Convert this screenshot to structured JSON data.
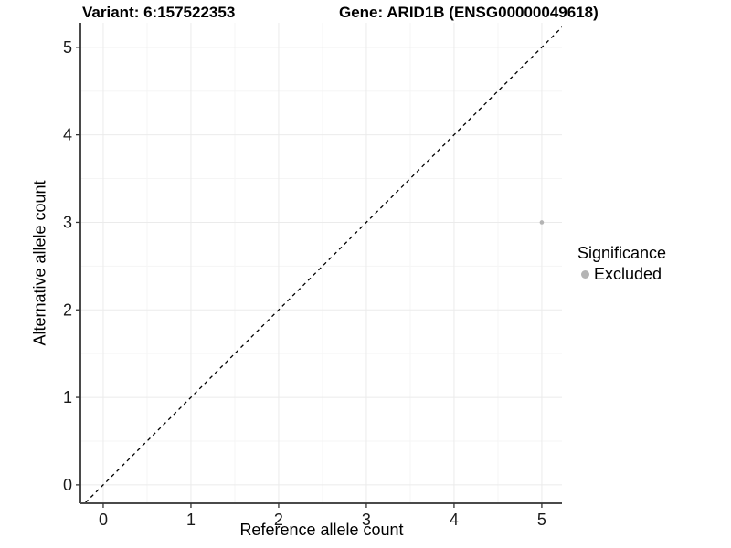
{
  "chart_data": {
    "type": "scatter",
    "titles": {
      "variant": "Variant: 6:157522353",
      "gene": "Gene: ARID1B (ENSG00000049618)"
    },
    "xlabel": "Reference allele count",
    "ylabel": "Alternative allele count",
    "x_ticks": [
      0,
      1,
      2,
      3,
      4,
      5
    ],
    "y_ticks": [
      0,
      1,
      2,
      3,
      4,
      5
    ],
    "xlim": [
      -0.26,
      5.23
    ],
    "ylim": [
      -0.21,
      5.28
    ],
    "grid": {
      "major": true,
      "minor": true,
      "minor_step": 0.5
    },
    "reference_line": {
      "type": "identity",
      "equation": "y = x",
      "style": "dashed",
      "color": "#000000"
    },
    "series": [
      {
        "name": "Excluded",
        "color": "#b4b4b4",
        "points": [
          {
            "x": 5,
            "y": 3
          }
        ]
      }
    ],
    "legend": {
      "position": "right",
      "title": "Significance",
      "items": [
        {
          "label": "Excluded",
          "color": "#b4b4b4"
        }
      ]
    },
    "colors": {
      "background": "#ffffff",
      "grid_major": "#ebebeb",
      "grid_minor": "#f5f5f5",
      "axis_line": "#4a4a4a",
      "tick_mark": "#333333",
      "text": "#000000",
      "point": "#b4b4b4"
    }
  }
}
